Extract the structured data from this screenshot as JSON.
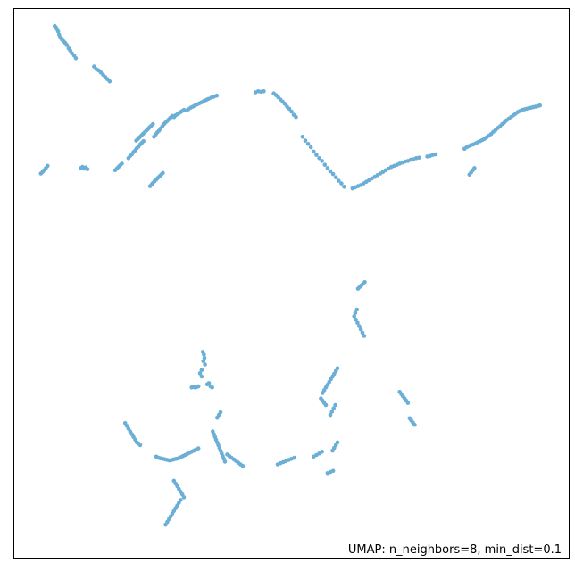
{
  "chart_data": {
    "type": "scatter",
    "title": "",
    "xlabel": "",
    "ylabel": "",
    "xlim": [
      0,
      100
    ],
    "ylim": [
      0,
      100
    ],
    "grid": false,
    "ticks_visible": false,
    "color": "#6baed6",
    "annotation": "UMAP: n_neighbors=8, min_dist=0.1",
    "annotation_position": "bottom-right",
    "series": [
      {
        "x": [
          7.3,
          7.5,
          7.7,
          7.9,
          8.1,
          8.3,
          8.6,
          8.9,
          9.2,
          9.5,
          9.8,
          10.1,
          10.4,
          10.8,
          11.1,
          14.4,
          14.8,
          15.2,
          15.6,
          16.0,
          16.4,
          16.8,
          17.2,
          4.8,
          5.1,
          5.4,
          5.7,
          6.0,
          12.0,
          12.3,
          12.6,
          12.9,
          13.2,
          18.2,
          18.5,
          18.8,
          19.1,
          19.4,
          20.6,
          20.9,
          21.2,
          21.5,
          21.8,
          22.1,
          22.4,
          22.7,
          23.0,
          23.3,
          22.0,
          22.3,
          22.6,
          22.9,
          23.2,
          23.5,
          23.8,
          24.1,
          24.4,
          24.7,
          25.0,
          24.8,
          24.5,
          25.0,
          25.3,
          25.6,
          25.9,
          26.2,
          26.5,
          26.8,
          25.2,
          25.5,
          25.8,
          26.1,
          26.4,
          26.7,
          27.0,
          27.3,
          27.6,
          27.9,
          28.2,
          28.5,
          28.8,
          29.1,
          29.4,
          29.7,
          30.0,
          30.3,
          30.6,
          31.0,
          31.4,
          31.8,
          32.2,
          32.6,
          33.0,
          33.4,
          33.8,
          34.2,
          34.6,
          35.0,
          35.5,
          36.0,
          36.5,
          43.5,
          44.0,
          44.5,
          45.0,
          46.8,
          47.2,
          47.6,
          48.0,
          48.4,
          48.8,
          49.2,
          49.6,
          50.0,
          50.4,
          50.8,
          52.0,
          52.5,
          53.0,
          53.5,
          54.0,
          54.5,
          55.0,
          55.5,
          56.0,
          56.5,
          57.0,
          57.5,
          58.0,
          58.5,
          59.0,
          59.5,
          61.0,
          61.5,
          62.0,
          62.5,
          63.0,
          63.5,
          64.0,
          64.5,
          65.0,
          65.5,
          66.0,
          66.5,
          67.0,
          67.5,
          68.0,
          68.5,
          69.0,
          69.5,
          70.0,
          70.5,
          71.0,
          71.5,
          72.0,
          72.5,
          73.0,
          74.5,
          75.0,
          75.5,
          76.0,
          81.2,
          81.6,
          82.0,
          82.4,
          82.8,
          83.2,
          83.6,
          84.0,
          84.4,
          84.8,
          85.2,
          85.6,
          86.0,
          86.4,
          86.8,
          87.2,
          87.6,
          88.0,
          88.4,
          88.8,
          89.2,
          89.6,
          90.0,
          90.4,
          90.8,
          91.2,
          91.6,
          92.0,
          92.4,
          92.8,
          93.2,
          93.6,
          94.0,
          94.4,
          94.8,
          83.0,
          82.7,
          82.4,
          82.1,
          62.0,
          62.3,
          62.6,
          62.9,
          63.2,
          61.8,
          61.5,
          61.3,
          61.6,
          61.9,
          62.2,
          62.5,
          62.8,
          63.1,
          34.0,
          34.2,
          34.3,
          34.1,
          34.4,
          33.8,
          33.5,
          33.8,
          33.2,
          32.9,
          32.6,
          32.3,
          32.0,
          34.8,
          35.1,
          35.4,
          35.7,
          20.0,
          20.3,
          20.6,
          20.9,
          21.2,
          21.5,
          21.8,
          22.1,
          22.4,
          22.7,
          25.6,
          26.0,
          26.4,
          26.8,
          27.2,
          27.6,
          28.0,
          28.4,
          28.8,
          29.2,
          29.6,
          30.0,
          30.4,
          30.8,
          31.2,
          31.6,
          32.0,
          32.4,
          32.8,
          33.2,
          28.8,
          29.1,
          29.4,
          29.7,
          30.0,
          30.3,
          30.6,
          30.0,
          29.7,
          29.4,
          29.1,
          28.8,
          28.5,
          28.2,
          27.9,
          27.6,
          27.3,
          35.8,
          36.0,
          36.2,
          36.4,
          36.6,
          36.8,
          37.0,
          37.2,
          37.4,
          37.6,
          37.8,
          38.0,
          36.6,
          36.9,
          37.2,
          38.4,
          38.8,
          39.2,
          39.6,
          40.0,
          40.4,
          40.8,
          41.2,
          47.5,
          48.0,
          48.5,
          49.0,
          49.5,
          50.0,
          50.5,
          54.0,
          54.5,
          55.0,
          55.5,
          56.5,
          57.0,
          57.5,
          57.0,
          57.3,
          57.6,
          57.9,
          56.2,
          55.9,
          55.6,
          55.3,
          55.6,
          55.9,
          56.2,
          56.5,
          56.8,
          57.1,
          57.4,
          57.7,
          58.0,
          58.3,
          58.3,
          58.0,
          57.7,
          57.4,
          69.5,
          69.8,
          70.1,
          70.4,
          70.7,
          71.0,
          71.3,
          71.6,
          71.9,
          72.2
        ],
        "y": [
          96.9,
          96.6,
          96.3,
          95.9,
          95.3,
          94.8,
          94.4,
          94.1,
          93.8,
          93.4,
          92.8,
          92.4,
          91.9,
          91.5,
          91.0,
          89.5,
          89.0,
          88.8,
          88.4,
          88.0,
          87.6,
          87.2,
          86.8,
          70.0,
          70.3,
          70.6,
          71.0,
          71.4,
          71.0,
          71.2,
          70.9,
          71.1,
          70.8,
          70.6,
          70.9,
          71.2,
          71.5,
          71.8,
          72.8,
          73.2,
          73.5,
          73.9,
          74.2,
          74.6,
          74.9,
          75.3,
          75.6,
          75.9,
          76.0,
          76.3,
          76.6,
          76.9,
          77.2,
          77.5,
          77.8,
          78.1,
          78.4,
          78.7,
          79.0,
          68.0,
          67.7,
          68.3,
          68.6,
          68.9,
          69.2,
          69.5,
          69.8,
          70.1,
          76.7,
          77.1,
          77.5,
          77.8,
          78.2,
          78.6,
          79.0,
          79.3,
          79.6,
          79.9,
          80.2,
          80.5,
          80.3,
          80.6,
          80.8,
          81.0,
          81.2,
          81.4,
          81.6,
          81.5,
          81.7,
          82.0,
          82.2,
          82.4,
          82.6,
          82.8,
          83.0,
          83.2,
          83.4,
          83.6,
          83.8,
          84.0,
          84.2,
          84.8,
          85.0,
          84.9,
          85.0,
          84.6,
          84.3,
          83.9,
          83.5,
          83.1,
          82.7,
          82.2,
          81.8,
          81.3,
          80.7,
          80.3,
          76.7,
          76.0,
          75.4,
          74.8,
          74.0,
          73.4,
          72.8,
          72.3,
          71.6,
          71.0,
          70.4,
          69.9,
          69.3,
          68.7,
          68.2,
          67.6,
          67.3,
          67.5,
          67.7,
          67.9,
          68.2,
          68.5,
          68.8,
          69.1,
          69.4,
          69.7,
          70.0,
          70.3,
          70.6,
          70.9,
          71.2,
          71.4,
          71.6,
          71.8,
          72.0,
          72.2,
          72.3,
          72.5,
          72.6,
          72.8,
          72.9,
          73.1,
          73.2,
          73.4,
          73.5,
          74.5,
          74.8,
          75.0,
          75.2,
          75.3,
          75.5,
          75.7,
          75.9,
          76.1,
          76.3,
          76.6,
          76.9,
          77.2,
          77.6,
          77.9,
          78.3,
          78.6,
          79.0,
          79.3,
          79.7,
          80.0,
          80.3,
          80.6,
          80.9,
          81.2,
          81.4,
          81.6,
          81.7,
          81.8,
          81.9,
          82.0,
          82.1,
          82.2,
          82.3,
          82.4,
          71.0,
          70.6,
          70.2,
          69.8,
          49.0,
          49.3,
          49.6,
          49.9,
          50.2,
          45.2,
          44.6,
          44.0,
          43.4,
          42.8,
          42.2,
          41.6,
          41.0,
          40.4,
          37.5,
          37.0,
          36.4,
          35.8,
          35.2,
          34.2,
          33.6,
          33.0,
          31.2,
          31.1,
          31.0,
          31.1,
          31.0,
          31.6,
          31.8,
          31.2,
          31.0,
          24.5,
          24.0,
          23.5,
          23.0,
          22.5,
          22.0,
          21.5,
          21.0,
          20.8,
          20.5,
          18.4,
          18.2,
          18.1,
          18.0,
          17.9,
          17.8,
          17.7,
          17.8,
          17.9,
          18.0,
          18.1,
          18.3,
          18.5,
          18.7,
          18.9,
          19.1,
          19.3,
          19.5,
          19.7,
          19.9,
          14.0,
          13.5,
          13.0,
          12.5,
          12.0,
          11.5,
          11.0,
          10.5,
          10.0,
          9.5,
          9.0,
          8.5,
          8.0,
          7.5,
          7.0,
          6.5,
          6.0,
          23.0,
          22.5,
          22.0,
          21.5,
          21.0,
          20.5,
          20.0,
          19.5,
          19.0,
          18.5,
          18.0,
          17.5,
          25.5,
          26.0,
          26.5,
          18.8,
          18.5,
          18.2,
          17.9,
          17.6,
          17.3,
          17.0,
          16.7,
          17.0,
          17.2,
          17.4,
          17.6,
          17.8,
          18.0,
          18.2,
          18.4,
          18.7,
          19.0,
          19.3,
          15.4,
          15.6,
          15.8,
          26.0,
          26.6,
          27.2,
          27.8,
          27.8,
          28.2,
          28.6,
          29.0,
          30.0,
          30.5,
          31.0,
          31.5,
          32.0,
          32.5,
          33.0,
          33.5,
          34.0,
          34.5,
          21.0,
          20.5,
          20.0,
          19.5,
          30.2,
          29.8,
          29.4,
          29.0,
          28.6,
          28.2,
          25.4,
          25.0,
          24.6,
          24.2
        ]
      }
    ]
  }
}
